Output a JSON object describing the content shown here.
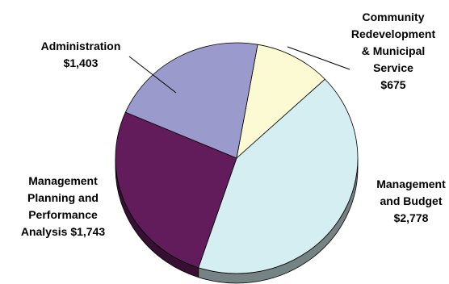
{
  "chart_data": {
    "type": "pie",
    "title": "",
    "slices": [
      {
        "name": "Community Redevelopment & Municipal Service",
        "value": 675,
        "label_lines": [
          "Community",
          "Redevelopment",
          "& Municipal",
          "Service",
          "$675"
        ],
        "color": "#fcfad2"
      },
      {
        "name": "Management and Budget",
        "value": 2778,
        "label_lines": [
          "Management",
          "and Budget",
          "$2,778"
        ],
        "color": "#d4eef2"
      },
      {
        "name": "Management Planning and Performance Analysis",
        "value": 1743,
        "label_lines": [
          "Management",
          "Planning and",
          "Performance",
          "Analysis $1,743"
        ],
        "color": "#621c5c"
      },
      {
        "name": "Administration",
        "value": 1403,
        "label_lines": [
          "Administration",
          "$1,403"
        ],
        "color": "#9a9acc"
      }
    ]
  }
}
